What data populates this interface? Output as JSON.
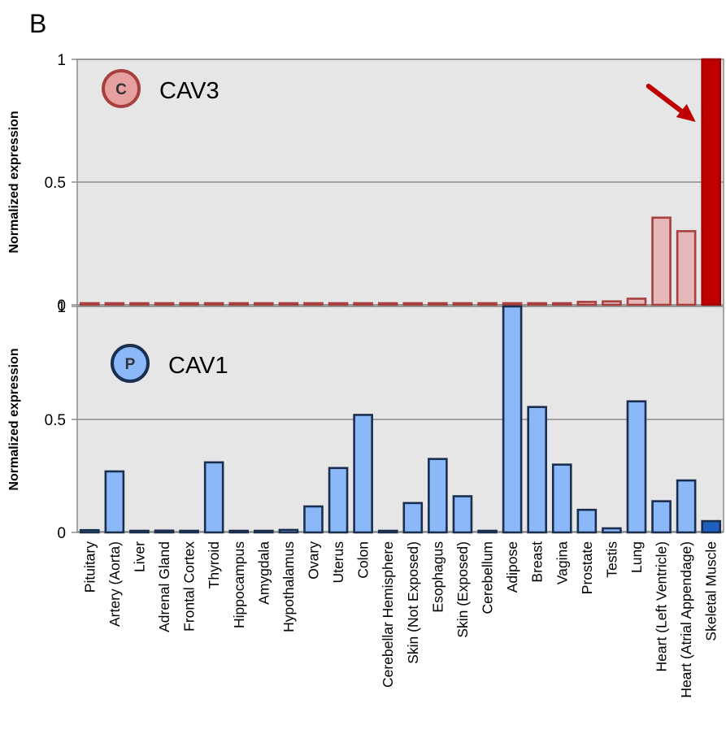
{
  "panel_label": "B",
  "chart_data": [
    {
      "type": "bar",
      "gene": "CAV3",
      "badge": "C",
      "ylabel": "Normalized expression",
      "ylim": [
        0,
        1
      ],
      "yticks": [
        "0",
        "0.5",
        "1"
      ],
      "categories": [
        "Pituitary",
        "Artery (Aorta)",
        "Liver",
        "Adrenal Gland",
        "Frontal Cortex",
        "Thyroid",
        "Hippocampus",
        "Amygdala",
        "Hypothalamus",
        "Ovary",
        "Uterus",
        "Colon",
        "Cerebellar Hemisphere",
        "Skin (Not Exposed)",
        "Esophagus",
        "Skin (Exposed)",
        "Cerebellum",
        "Adipose",
        "Breast",
        "Vagina",
        "Prostate",
        "Testis",
        "Lung",
        "Heart (Left Ventricle)",
        "Heart (Atrial Appendage)",
        "Skeletal Muscle"
      ],
      "values": [
        0.001,
        0.001,
        0.001,
        0.001,
        0.001,
        0.001,
        0.001,
        0.001,
        0.001,
        0.002,
        0.002,
        0.002,
        0.002,
        0.002,
        0.003,
        0.003,
        0.003,
        0.004,
        0.005,
        0.006,
        0.012,
        0.014,
        0.025,
        0.355,
        0.3,
        1.0
      ],
      "highlight": "Skeletal Muscle",
      "arrow_to": "Skeletal Muscle",
      "colors": {
        "bg": "#e6e6e6",
        "fill": "#e6b8b8",
        "stroke": "#a84040",
        "highlight_fill": "#c00000",
        "highlight_stroke": "#a00000",
        "badge_fill": "#e6a0a0",
        "badge_stroke": "#a84040",
        "arrow": "#c00000"
      }
    },
    {
      "type": "bar",
      "gene": "CAV1",
      "badge": "P",
      "ylabel": "Normalized expression",
      "ylim": [
        0,
        1
      ],
      "yticks": [
        "0",
        "0.5",
        "1"
      ],
      "categories": [
        "Pituitary",
        "Artery (Aorta)",
        "Liver",
        "Adrenal Gland",
        "Frontal Cortex",
        "Thyroid",
        "Hippocampus",
        "Amygdala",
        "Hypothalamus",
        "Ovary",
        "Uterus",
        "Colon",
        "Cerebellar Hemisphere",
        "Skin (Not Exposed)",
        "Esophagus",
        "Skin (Exposed)",
        "Cerebellum",
        "Adipose",
        "Breast",
        "Vagina",
        "Prostate",
        "Testis",
        "Lung",
        "Heart (Left Ventricle)",
        "Heart (Atrial Appendage)",
        "Skeletal Muscle"
      ],
      "values": [
        0.01,
        0.27,
        0.005,
        0.008,
        0.006,
        0.31,
        0.006,
        0.006,
        0.011,
        0.115,
        0.285,
        0.52,
        0.004,
        0.13,
        0.325,
        0.16,
        0.003,
        1.0,
        0.555,
        0.3,
        0.1,
        0.018,
        0.58,
        0.138,
        0.23,
        0.05
      ],
      "highlight": "Skeletal Muscle",
      "colors": {
        "bg": "#e6e6e6",
        "fill": "#8ab8f8",
        "stroke": "#1a2f50",
        "highlight_fill": "#1f5fbf",
        "highlight_stroke": "#1a2f50",
        "badge_fill": "#8ab8f8",
        "badge_stroke": "#1a2f50"
      }
    }
  ]
}
